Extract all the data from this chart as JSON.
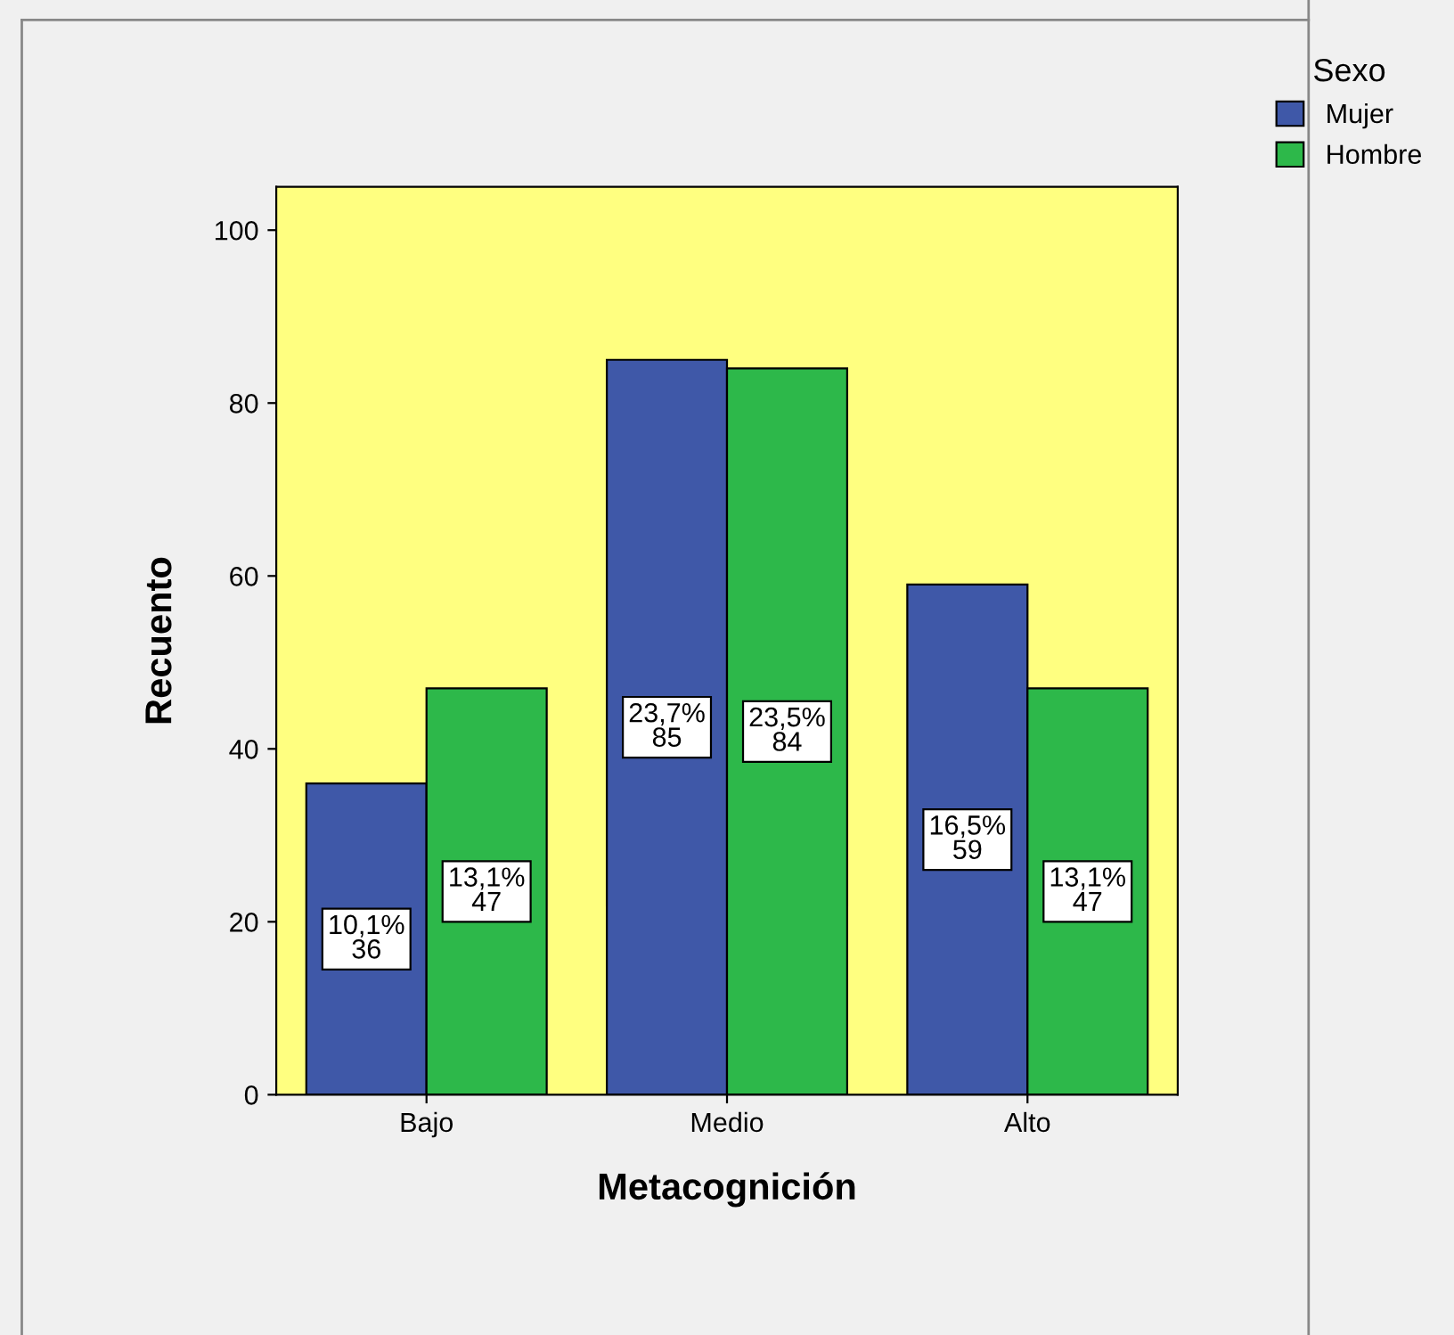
{
  "chart_data": {
    "type": "bar",
    "xlabel": "Metacognición",
    "ylabel": "Recuento",
    "legend_title": "Sexo",
    "categories": [
      "Bajo",
      "Medio",
      "Alto"
    ],
    "series": [
      {
        "name": "Mujer",
        "color": "#3f58a8",
        "values": [
          36,
          85,
          59
        ],
        "value_labels": [
          "10,1%\n36",
          "23,7%\n85",
          "16,5%\n59"
        ]
      },
      {
        "name": "Hombre",
        "color": "#2db84a",
        "values": [
          47,
          84,
          47
        ],
        "value_labels": [
          "13,1%\n47",
          "23,5%\n84",
          "13,1%\n47"
        ]
      }
    ],
    "ylim": [
      0,
      105
    ],
    "yticks": [
      0,
      20,
      40,
      60,
      80,
      100
    ],
    "grid": false,
    "legend": "top right"
  }
}
